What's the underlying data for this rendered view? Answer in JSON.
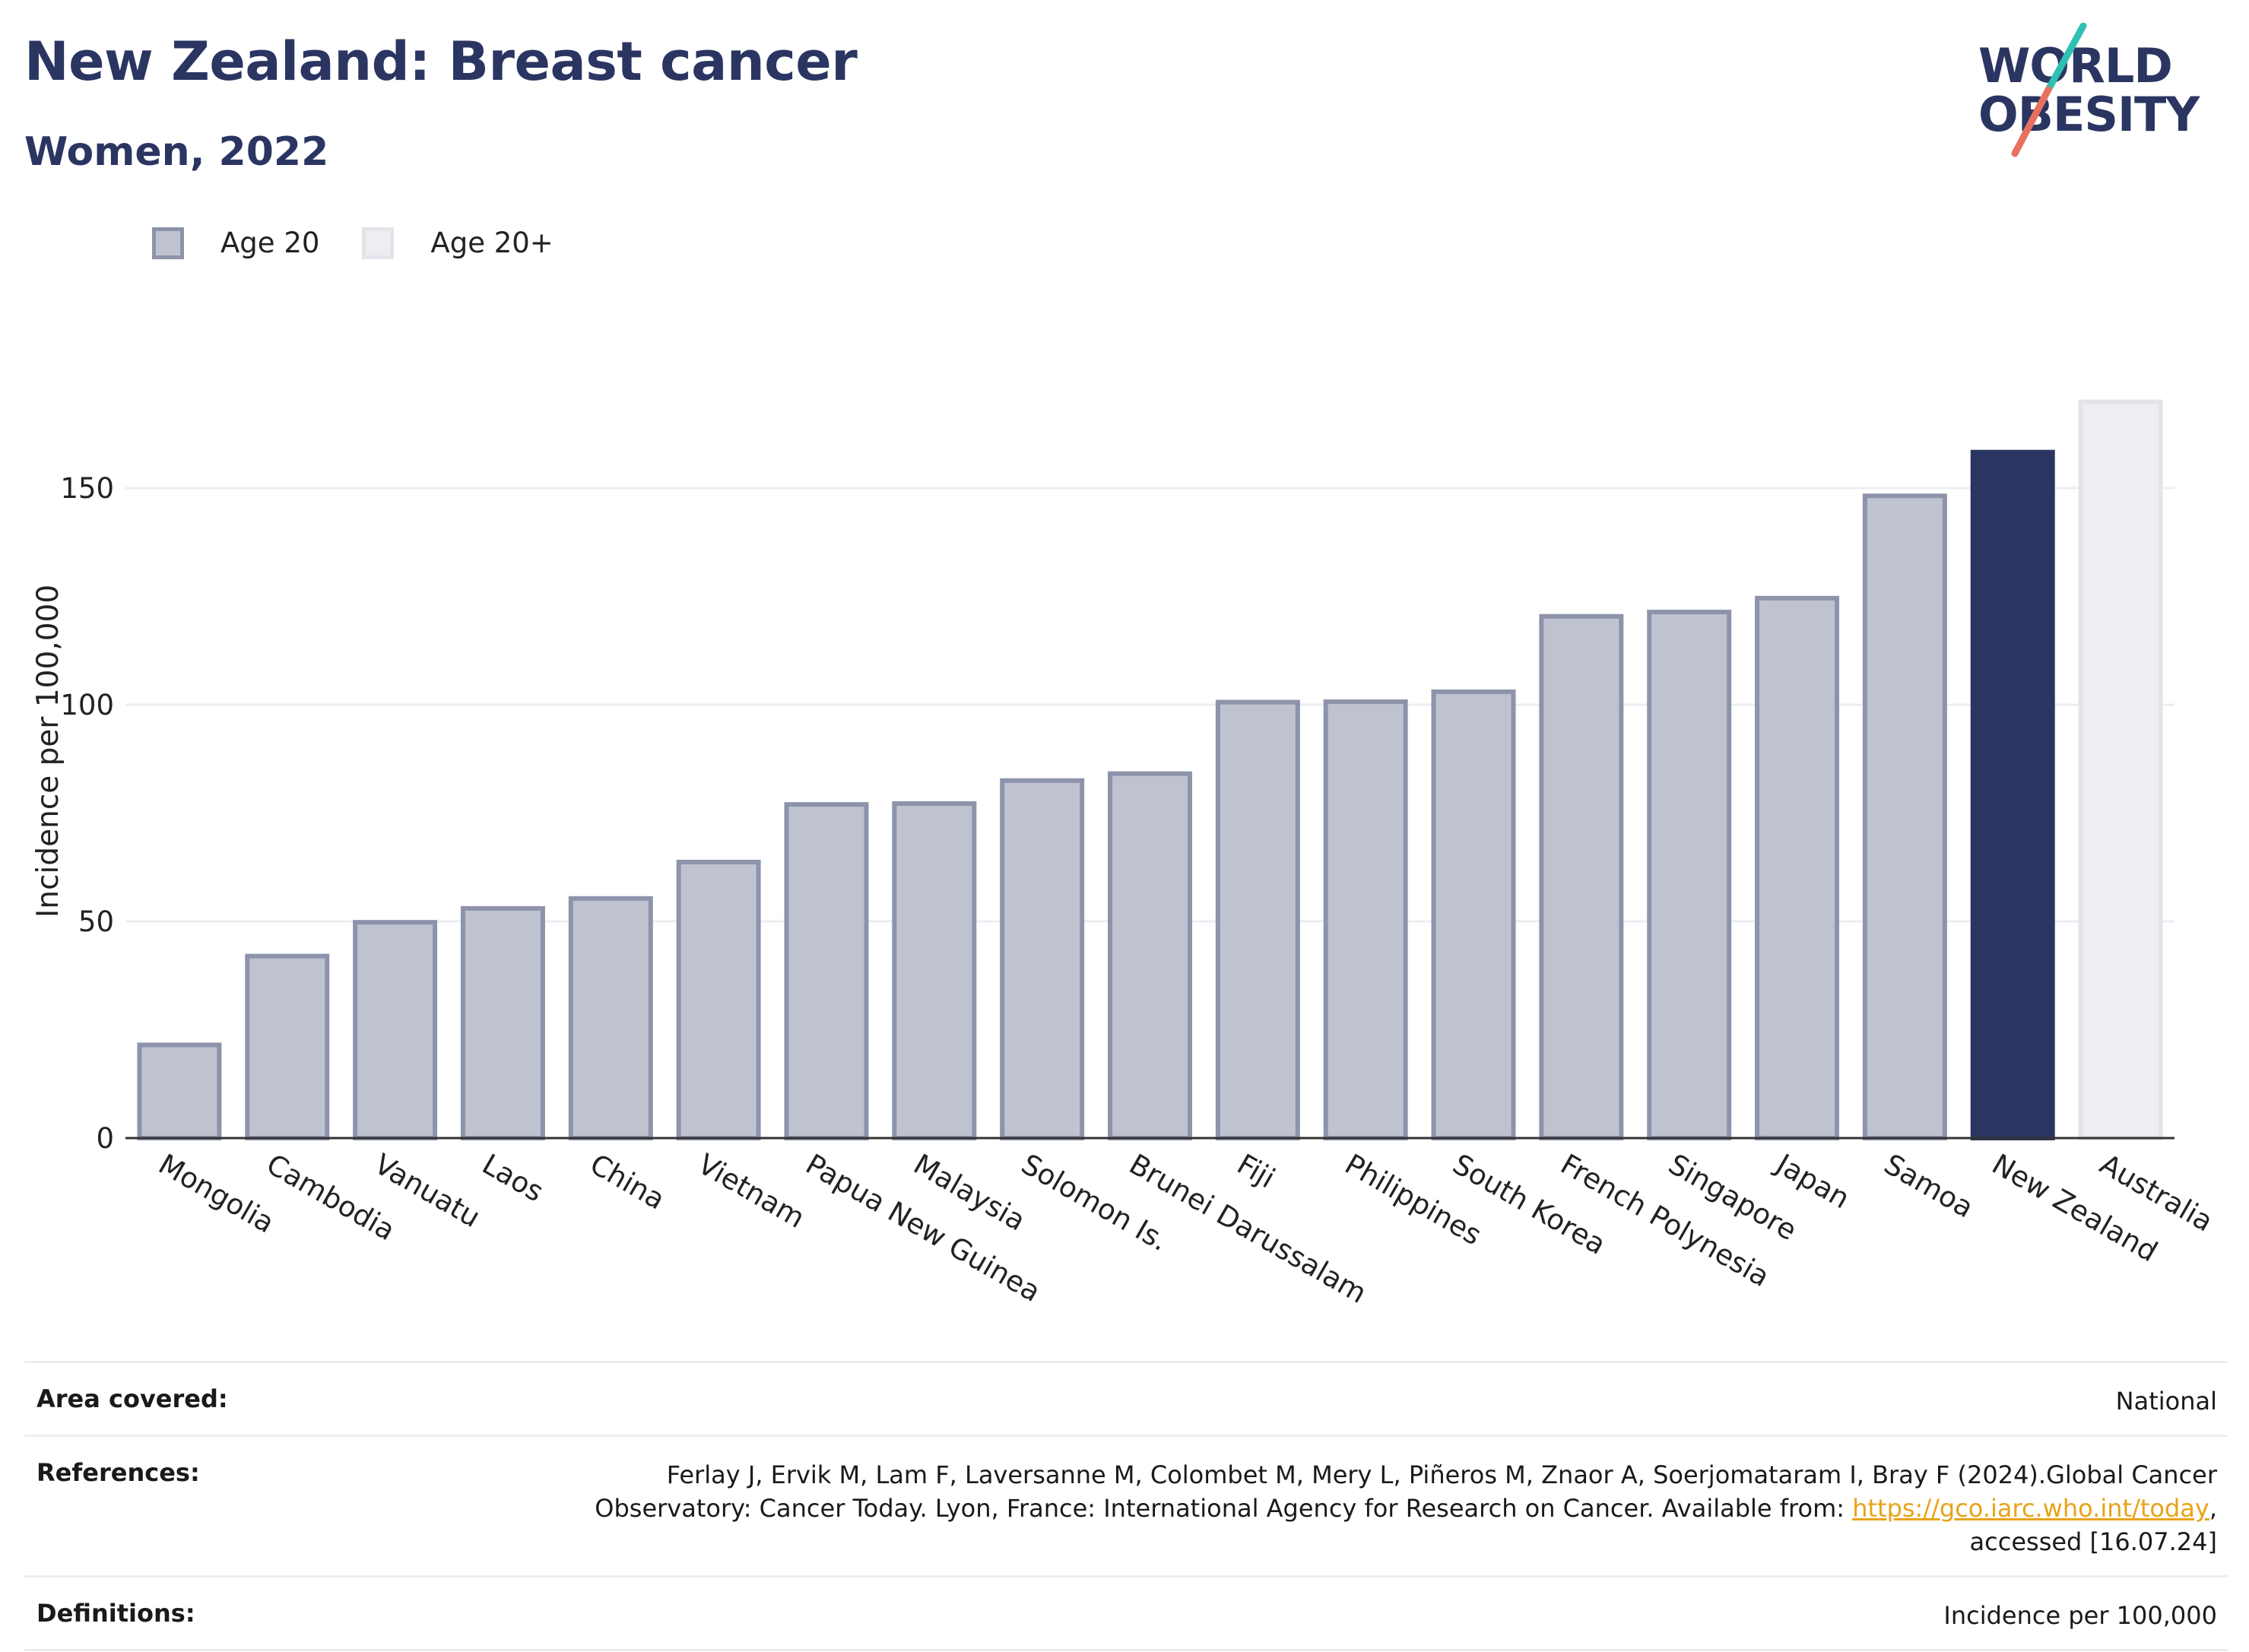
{
  "header": {
    "title": "New Zealand: Breast cancer",
    "subtitle": "Women, 2022"
  },
  "logo": {
    "line1": "WORLD",
    "line2": "OBESITY",
    "icon": "slash-logo-icon"
  },
  "legend": {
    "items": [
      {
        "label": "Age 20",
        "color": "#bfc3d0"
      },
      {
        "label": "Age 20+",
        "color": "#eceef2"
      }
    ]
  },
  "chart_data": {
    "type": "bar",
    "ylabel": "Incidence per 100,000",
    "xlabel": "",
    "ylim": [
      0,
      170
    ],
    "yticks": [
      0,
      50,
      100,
      150
    ],
    "grid": true,
    "legend_position": "top-left",
    "categories": [
      "Mongolia",
      "Cambodia",
      "Vanuatu",
      "Laos",
      "China",
      "Vietnam",
      "Papua New Guinea",
      "Malaysia",
      "Solomon Is.",
      "Brunei Darussalam",
      "Fiji",
      "Philippines",
      "South Korea",
      "French Polynesia",
      "Singapore",
      "Japan",
      "Samoa",
      "New Zealand",
      "Australia"
    ],
    "values": [
      21.5,
      42,
      49.8,
      53,
      55.3,
      63.7,
      77,
      77.2,
      82.5,
      84.1,
      100.6,
      100.7,
      103,
      120.4,
      121.4,
      124.6,
      148.2,
      158.3,
      169.9
    ],
    "highlight": "New Zealand",
    "colors": {
      "default_fill": "#bfc3d0",
      "default_stroke": "#8d93ab",
      "highlight_fill": "#2b3562",
      "comparison_fill": "#eceef2",
      "comparison_stroke": "#e2e4ea"
    },
    "comparison": "Australia"
  },
  "footer": {
    "area_label": "Area covered:",
    "area_value": "National",
    "references_label": "References:",
    "references_line1": "Ferlay J, Ervik M, Lam F, Laversanne M, Colombet M, Mery L, Piñeros M, Znaor A, Soerjomataram I, Bray F (2024).Global Cancer",
    "references_line2_pre": "Observatory: Cancer Today. Lyon, France: International Agency for Research on Cancer. Available from: ",
    "references_link": "https://gco.iarc.who.int/today",
    "references_line2_post": ",",
    "references_line3": "accessed [16.07.24]",
    "definitions_label": "Definitions:",
    "definitions_value": "Incidence per 100,000"
  }
}
